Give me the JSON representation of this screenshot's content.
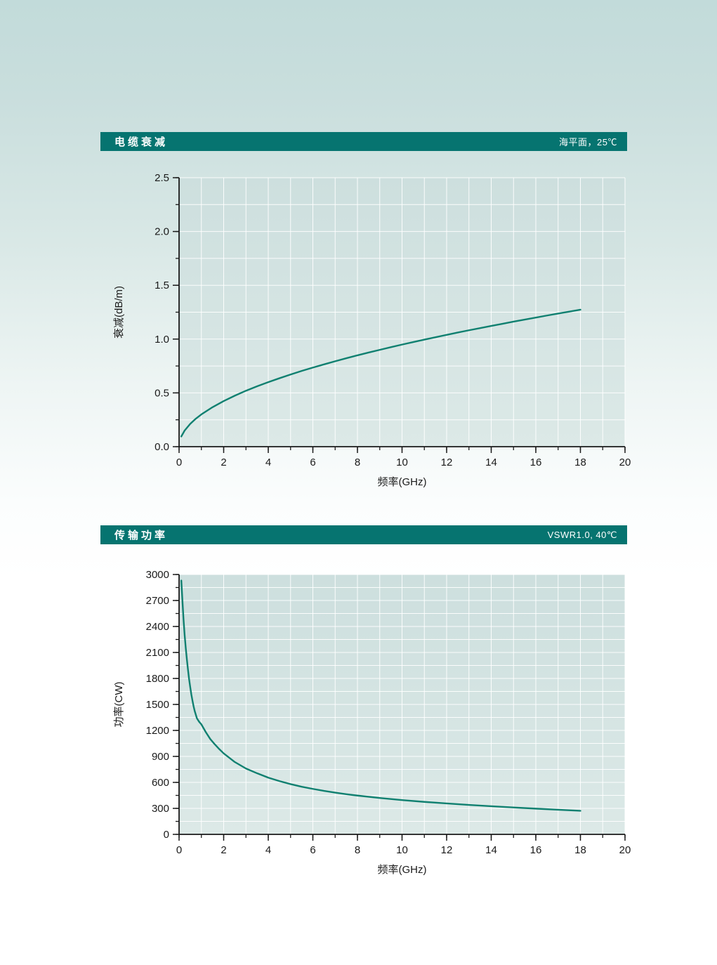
{
  "page": {
    "background_top": "#c2dbda",
    "background_bottom": "#ffffff"
  },
  "colors": {
    "header_bar": "#067470",
    "header_text": "#ffffff",
    "curve": "#108070",
    "plot_bg_top": "#cddfde",
    "plot_bg_bottom": "#dce9e7",
    "grid": "#ffffff",
    "axis": "#1a1a1a",
    "tick_label": "#1a1a1a"
  },
  "chart_data": [
    {
      "type": "line",
      "section_title": "电缆衰减",
      "condition": "海平面，25℃",
      "xlabel": "频率(GHz)",
      "ylabel": "衰减(dB/m)",
      "xlim": [
        0,
        20
      ],
      "ylim": [
        0,
        2.5
      ],
      "x_tick_values": [
        0,
        2,
        4,
        6,
        8,
        10,
        12,
        14,
        16,
        18,
        20
      ],
      "x_tick_labels": [
        "0",
        "2",
        "4",
        "6",
        "8",
        "10",
        "12",
        "14",
        "16",
        "18",
        "20"
      ],
      "x_minor_step": 1,
      "y_tick_values": [
        0,
        0.5,
        1.0,
        1.5,
        2.0,
        2.5
      ],
      "y_tick_labels": [
        "0.0",
        "0.5",
        "1.0",
        "1.5",
        "2.0",
        "2.5"
      ],
      "y_minor_step": 0.25,
      "grid": true,
      "legend": "none",
      "series": [
        {
          "name": "电缆衰减曲线",
          "x": [
            0.1,
            0.25,
            0.5,
            0.75,
            1,
            1.5,
            2,
            2.5,
            3,
            3.5,
            4,
            4.5,
            5,
            5.5,
            6,
            6.5,
            7,
            7.5,
            8,
            8.5,
            9,
            9.5,
            10,
            10.5,
            11,
            11.5,
            12,
            12.5,
            13,
            13.5,
            14,
            14.5,
            15,
            15.5,
            16,
            16.5,
            17,
            17.5,
            18
          ],
          "y": [
            0.095,
            0.15,
            0.212,
            0.26,
            0.3,
            0.367,
            0.424,
            0.474,
            0.52,
            0.561,
            0.6,
            0.636,
            0.671,
            0.704,
            0.735,
            0.765,
            0.794,
            0.822,
            0.849,
            0.875,
            0.9,
            0.925,
            0.949,
            0.972,
            0.995,
            1.017,
            1.039,
            1.061,
            1.082,
            1.102,
            1.122,
            1.142,
            1.162,
            1.181,
            1.2,
            1.219,
            1.237,
            1.255,
            1.273
          ]
        }
      ]
    },
    {
      "type": "line",
      "section_title": "传输功率",
      "condition": "VSWR1.0, 40℃",
      "xlabel": "频率(GHz)",
      "ylabel": "功率(CW)",
      "xlim": [
        0,
        20
      ],
      "ylim": [
        0,
        3000
      ],
      "x_tick_values": [
        0,
        2,
        4,
        6,
        8,
        10,
        12,
        14,
        16,
        18,
        20
      ],
      "x_tick_labels": [
        "0",
        "2",
        "4",
        "6",
        "8",
        "10",
        "12",
        "14",
        "16",
        "18",
        "20"
      ],
      "x_minor_step": 1,
      "y_tick_values": [
        0,
        300,
        600,
        900,
        1200,
        1500,
        1800,
        2100,
        2400,
        2700,
        3000
      ],
      "y_tick_labels": [
        "0",
        "300",
        "600",
        "900",
        "1200",
        "1500",
        "1800",
        "2100",
        "2400",
        "2700",
        "3000"
      ],
      "y_minor_step": 150,
      "grid": true,
      "legend": "none",
      "series": [
        {
          "name": "传输功率曲线",
          "x": [
            0.1,
            0.15,
            0.2,
            0.25,
            0.3,
            0.35,
            0.4,
            0.45,
            0.5,
            0.55,
            0.6,
            0.65,
            0.7,
            0.8,
            0.9,
            1,
            1.2,
            1.4,
            1.6,
            1.8,
            2,
            2.5,
            3,
            3.5,
            4,
            4.5,
            5,
            5.5,
            6,
            6.5,
            7,
            7.5,
            8,
            9,
            10,
            11,
            12,
            13,
            14,
            15,
            16,
            17,
            18
          ],
          "y": [
            2930,
            2700,
            2480,
            2300,
            2150,
            2020,
            1900,
            1790,
            1700,
            1615,
            1545,
            1480,
            1425,
            1340,
            1300,
            1270,
            1180,
            1100,
            1040,
            985,
            935,
            835,
            760,
            705,
            655,
            615,
            580,
            550,
            525,
            502,
            482,
            464,
            448,
            420,
            396,
            375,
            357,
            340,
            325,
            311,
            297,
            284,
            272
          ]
        }
      ]
    }
  ]
}
